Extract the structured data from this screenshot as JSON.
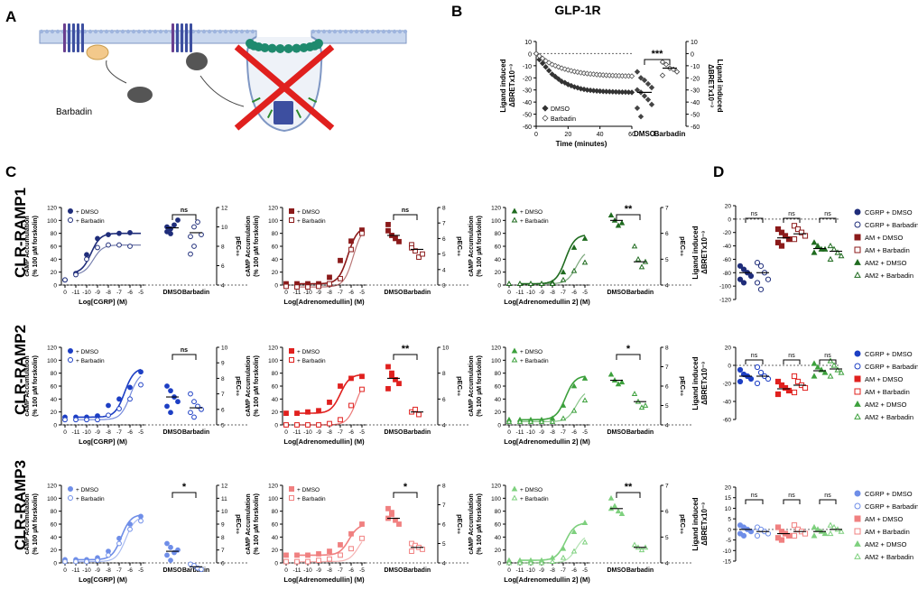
{
  "figure": {
    "panel_letters": [
      "A",
      "B",
      "C",
      "D"
    ],
    "row_labels": [
      "CLR-RAMP1",
      "CLR-RAMP2",
      "CLR-RAMP3"
    ],
    "schematic": {
      "label": "Barbadin"
    }
  },
  "chart_data": [
    {
      "id": "B",
      "type": "line",
      "title": "GLP-1R",
      "xlabel": "Time (minutes)",
      "ylabel": "Ligand induced\nΔBRETx10⁻³",
      "ylabel_right": "Ligand induced\nΔBRETx10⁻³",
      "xlim": [
        0,
        60
      ],
      "ylim": [
        -60,
        10
      ],
      "x_ticks": [
        "0",
        "20",
        "40",
        "60"
      ],
      "y_ticks": [
        "10",
        "0",
        "-10",
        "-20",
        "-30",
        "-40",
        "-50",
        "-60"
      ],
      "series": [
        {
          "name": "DMSO",
          "marker": "diamond-filled",
          "x": [
            0,
            2,
            4,
            6,
            8,
            10,
            12,
            14,
            16,
            18,
            20,
            22,
            24,
            26,
            28,
            30,
            32,
            34,
            36,
            38,
            40,
            42,
            44,
            46,
            48,
            50,
            52,
            54,
            56,
            58,
            60
          ],
          "values": [
            0,
            -5,
            -8,
            -11,
            -14,
            -17,
            -19,
            -21,
            -23,
            -24,
            -25.5,
            -26.5,
            -27.5,
            -28.2,
            -29,
            -29.5,
            -30,
            -30.3,
            -30.6,
            -30.8,
            -31,
            -31.2,
            -31.3,
            -31.4,
            -31.5,
            -31.6,
            -31.7,
            -31.8,
            -31.8,
            -31.9,
            -32
          ]
        },
        {
          "name": "Barbadin",
          "marker": "diamond-open",
          "x": [
            0,
            2,
            4,
            6,
            8,
            10,
            12,
            14,
            16,
            18,
            20,
            22,
            24,
            26,
            28,
            30,
            32,
            34,
            36,
            38,
            40,
            42,
            44,
            46,
            48,
            50,
            52,
            54,
            56,
            58,
            60
          ],
          "values": [
            0,
            -2,
            -4,
            -6,
            -7.5,
            -9,
            -10,
            -11,
            -12,
            -12.8,
            -13.5,
            -14.2,
            -14.8,
            -15.3,
            -15.8,
            -16.2,
            -16.5,
            -16.8,
            -17,
            -17.3,
            -17.5,
            -17.7,
            -17.9,
            -18,
            -18.1,
            -18.2,
            -18.3,
            -18.4,
            -18.5,
            -18.5,
            -18.6
          ]
        }
      ],
      "scatter": {
        "categories": [
          "DMSO",
          "Barbadin"
        ],
        "DMSO": [
          -15,
          -20,
          -22,
          -25,
          -28,
          -30,
          -32,
          -35,
          -38,
          -42,
          -45,
          -52
        ],
        "DMSO_mean": -32,
        "Barbadin": [
          -7,
          -9,
          -12,
          -13,
          -15,
          -18
        ],
        "Barbadin_mean": -12
      },
      "significance": "***"
    },
    {
      "id": "C",
      "type": "line",
      "ylabel": "cAMP Accumulation\n(% 100 µM forskolin)",
      "ylabel_right": "pEC₅₀",
      "x_ticks": [
        "0",
        "-11",
        "-10",
        "-9",
        "-8",
        "-7",
        "-6",
        "-5"
      ],
      "y_ticks": [
        "0",
        "20",
        "40",
        "60",
        "80",
        "100",
        "120"
      ],
      "legend": [
        "+ DMSO",
        "+ Barbadin"
      ],
      "scatter_categories": [
        "DMSO",
        "Barbadin"
      ],
      "panels": [
        {
          "row": 1,
          "col": 1,
          "xlabel": "Log[CGRP] (M)",
          "color": "#1f2d7a",
          "dmso_fit": [
            -9.6,
            80,
            8
          ],
          "barb_fit": [
            -9.4,
            62,
            8
          ],
          "dmso_pts": [
            8,
            18,
            47,
            72,
            78,
            80,
            81
          ],
          "barb_pts": [
            8,
            16,
            40,
            58,
            62,
            62,
            60
          ],
          "r_ticks": [
            "4",
            "6",
            "8",
            "10",
            "12"
          ],
          "r_range": [
            4,
            12
          ],
          "dmso_pec": [
            9.5,
            9.8,
            10.2,
            10.7,
            10.0,
            9.3
          ],
          "barb_pec": [
            9.0,
            10.0,
            10.5,
            9.2,
            7.2,
            8.0
          ],
          "dmso_mean": 9.9,
          "barb_mean": 9.4,
          "sig": "ns"
        },
        {
          "row": 1,
          "col": 2,
          "xlabel": "Log[Adrenomedullin] (M)",
          "color": "#8b1a1a",
          "dmso_fit": [
            -6.3,
            90,
            7
          ],
          "barb_fit": [
            -5.8,
            92,
            7
          ],
          "dmso_pts": [
            2,
            2,
            2,
            2,
            12,
            38,
            68,
            85
          ],
          "barb_pts": [
            -2,
            -3,
            -3,
            -2,
            2,
            10,
            55,
            80
          ],
          "r_ticks": [
            "3",
            "4",
            "5",
            "6",
            "7",
            "8"
          ],
          "r_range": [
            3,
            8
          ],
          "dmso_pec": [
            6.5,
            6.2,
            6.0,
            5.8,
            6.9
          ],
          "barb_pec": [
            5.6,
            5.2,
            4.8,
            5.0,
            5.4
          ],
          "dmso_mean": 6.2,
          "barb_mean": 5.3,
          "sig": "ns"
        },
        {
          "row": 1,
          "col": 3,
          "xlabel": "Log[Adrenomedullin 2] (M)",
          "color": "#1f6b1f",
          "dmso_fit": [
            -6.8,
            78,
            7
          ],
          "barb_fit": [
            -5.8,
            55,
            7
          ],
          "dmso_pts": [
            2,
            2,
            2,
            2,
            4,
            20,
            58,
            72
          ],
          "barb_pts": [
            2,
            2,
            2,
            2,
            2,
            8,
            22,
            35
          ],
          "r_ticks": [
            "4",
            "5",
            "6",
            "7"
          ],
          "r_range": [
            4,
            7
          ],
          "dmso_pec": [
            6.7,
            6.5,
            6.3,
            6.4
          ],
          "barb_pec": [
            5.5,
            5.0,
            4.7,
            4.9
          ],
          "dmso_mean": 6.5,
          "barb_mean": 4.9,
          "sig": "**"
        },
        {
          "row": 2,
          "col": 1,
          "xlabel": "Log[CGRP] (M)",
          "color": "#1d3fc4",
          "dmso_fit": [
            -6.5,
            88,
            7
          ],
          "barb_fit": [
            -6.0,
            82,
            7
          ],
          "dmso_pts": [
            12,
            12,
            12,
            14,
            30,
            40,
            58,
            82
          ],
          "barb_pts": [
            8,
            8,
            8,
            8,
            15,
            25,
            40,
            62
          ],
          "r_ticks": [
            "5",
            "6",
            "7",
            "8",
            "9",
            "10"
          ],
          "r_range": [
            5,
            10
          ],
          "dmso_pec": [
            7.5,
            7.2,
            6.8,
            6.5,
            6.2,
            5.8
          ],
          "barb_pec": [
            7.0,
            6.5,
            6.2,
            6.0,
            5.8,
            5.5
          ],
          "dmso_mean": 6.8,
          "barb_mean": 6.1,
          "sig": "ns"
        },
        {
          "row": 2,
          "col": 2,
          "xlabel": "Log[Adrenomedullin] (M)",
          "color": "#e0201e",
          "dmso_fit": [
            -7.0,
            78,
            7
          ],
          "barb_fit": [
            -5.5,
            75,
            7
          ],
          "dmso_pts": [
            18,
            18,
            20,
            22,
            35,
            60,
            72,
            75
          ],
          "barb_pts": [
            0,
            0,
            0,
            0,
            2,
            8,
            30,
            55
          ],
          "r_ticks": [
            "4",
            "6",
            "8",
            "10"
          ],
          "r_range": [
            4,
            10
          ],
          "dmso_pec": [
            8.5,
            8.0,
            7.5,
            7.2,
            6.8,
            7.8
          ],
          "barb_pec": [
            5.0,
            5.2,
            4.8
          ],
          "dmso_mean": 7.6,
          "barb_mean": 5.0,
          "sig": "**"
        },
        {
          "row": 2,
          "col": 3,
          "xlabel": "Log[Adrenomedullin 2] (M)",
          "color": "#3ca03c",
          "dmso_fit": [
            -6.8,
            76,
            7
          ],
          "barb_fit": [
            -5.8,
            55,
            7
          ],
          "dmso_pts": [
            8,
            8,
            8,
            8,
            10,
            30,
            60,
            72
          ],
          "barb_pts": [
            5,
            5,
            5,
            5,
            5,
            10,
            22,
            38
          ],
          "r_ticks": [
            "4",
            "5",
            "6",
            "7",
            "8"
          ],
          "r_range": [
            4,
            8
          ],
          "dmso_pec": [
            6.6,
            6.3,
            6.1,
            6.2
          ],
          "barb_pec": [
            5.6,
            5.2,
            4.9,
            5.0
          ],
          "dmso_mean": 6.3,
          "barb_mean": 5.2,
          "sig": "*"
        },
        {
          "row": 3,
          "col": 1,
          "xlabel": "Log[CGRP] (M)",
          "color": "#6f8ee8",
          "dmso_fit": [
            -6.8,
            75,
            7
          ],
          "barb_fit": [
            -6.4,
            72,
            7
          ],
          "dmso_pts": [
            5,
            5,
            5,
            8,
            18,
            38,
            60,
            72
          ],
          "barb_pts": [
            2,
            2,
            2,
            4,
            12,
            30,
            52,
            65
          ],
          "r_ticks": [
            "6",
            "7",
            "8",
            "9",
            "10",
            "11",
            "12"
          ],
          "r_range": [
            6,
            12
          ],
          "dmso_pec": [
            7.5,
            7.2,
            6.8,
            7.0,
            6.6,
            6.2
          ],
          "barb_pec": [
            5.9,
            5.8,
            5.6,
            5.5
          ],
          "dmso_mean": 6.9,
          "barb_mean": 5.7,
          "sig": "*"
        },
        {
          "row": 3,
          "col": 2,
          "xlabel": "Log[Adrenomedullin] (M)",
          "color": "#f08080",
          "dmso_fit": [
            -6.2,
            60,
            7
          ],
          "barb_fit": [
            -5.3,
            48,
            7
          ],
          "dmso_pts": [
            12,
            12,
            12,
            14,
            18,
            28,
            45,
            60
          ],
          "barb_pts": [
            2,
            2,
            2,
            4,
            6,
            12,
            22,
            38
          ],
          "r_ticks": [
            "4",
            "5",
            "6",
            "7",
            "8"
          ],
          "r_range": [
            4,
            8
          ],
          "dmso_pec": [
            6.8,
            6.5,
            6.2,
            6.0,
            6.3,
            6.6
          ],
          "barb_pec": [
            5.0,
            4.9,
            4.8,
            4.7,
            4.6
          ],
          "dmso_mean": 6.3,
          "barb_mean": 4.8,
          "sig": "*"
        },
        {
          "row": 3,
          "col": 3,
          "xlabel": "Log[Adrenomedullin 2] (M)",
          "color": "#7ed07e",
          "dmso_fit": [
            -6.8,
            62,
            7
          ],
          "barb_fit": [
            -5.8,
            45,
            7
          ],
          "dmso_pts": [
            4,
            4,
            4,
            4,
            8,
            22,
            48,
            62
          ],
          "barb_pts": [
            0,
            0,
            0,
            0,
            2,
            8,
            18,
            32
          ],
          "r_ticks": [
            "4",
            "5",
            "6",
            "7"
          ],
          "r_range": [
            4,
            7
          ],
          "dmso_pec": [
            6.5,
            6.2,
            6.0,
            5.9,
            6.1
          ],
          "barb_pec": [
            4.7,
            4.6,
            4.5,
            4.6
          ],
          "dmso_mean": 6.1,
          "barb_mean": 4.6,
          "sig": "**"
        }
      ]
    },
    {
      "id": "D",
      "type": "scatter",
      "ylabel": "Ligand induced\nΔBRETx10⁻³",
      "significance": "ns",
      "panels": [
        {
          "row": 1,
          "ylim": [
            -120,
            20
          ],
          "y_ticks": [
            "20",
            "0",
            "-20",
            "-40",
            "-60",
            "-80",
            "-100",
            "-120"
          ],
          "legend": [
            "CGRP + DMSO",
            "CGRP + Barbadin",
            "AM + DMSO",
            "AM + Barbadin",
            "AM2 + DMSO",
            "AM2 + Barbadin"
          ],
          "colors": [
            "#1f2d7a",
            "#1f2d7a",
            "#8b1a1a",
            "#8b1a1a",
            "#1f6b1f",
            "#1f6b1f"
          ],
          "groups": [
            [
              -70,
              -75,
              -80,
              -85,
              -90,
              -95
            ],
            [
              -65,
              -70,
              -80,
              -90,
              -95,
              -105
            ],
            [
              -15,
              -20,
              -25,
              -30,
              -35,
              -40
            ],
            [
              -10,
              -15,
              -20,
              -25,
              -30
            ],
            [
              -35,
              -40,
              -45,
              -45,
              -50
            ],
            [
              -40,
              -45,
              -50,
              -55,
              -60
            ]
          ],
          "means": [
            -80,
            -80,
            -28,
            -22,
            -44,
            -48
          ]
        },
        {
          "row": 2,
          "ylim": [
            -60,
            20
          ],
          "y_ticks": [
            "20",
            "0",
            "-20",
            "-40",
            "-60"
          ],
          "legend": [
            "CGRP + DMSO",
            "CGRP + Barbadin",
            "AM + DMSO",
            "AM + Barbadin",
            "AM2 + DMSO",
            "AM2 + Barbadin"
          ],
          "colors": [
            "#1d3fc4",
            "#1d3fc4",
            "#e0201e",
            "#e0201e",
            "#3ca03c",
            "#3ca03c"
          ],
          "groups": [
            [
              -5,
              -10,
              -12,
              -15,
              -18
            ],
            [
              -2,
              -8,
              -12,
              -15,
              -20
            ],
            [
              -18,
              -22,
              -25,
              -28,
              -32
            ],
            [
              -12,
              -18,
              -22,
              -25,
              -30
            ],
            [
              2,
              -2,
              -5,
              -8,
              -12
            ],
            [
              5,
              0,
              -5,
              -8,
              -12
            ]
          ],
          "means": [
            -12,
            -12,
            -26,
            -22,
            -6,
            -4
          ]
        },
        {
          "row": 3,
          "ylim": [
            -15,
            20
          ],
          "y_ticks": [
            "20",
            "15",
            "10",
            "5",
            "0",
            "-5",
            "-10",
            "-15"
          ],
          "legend": [
            "CGRP + DMSO",
            "CGRP + Barbadin",
            "AM + DMSO",
            "AM + Barbadin",
            "AM2 + DMSO",
            "AM2 + Barbadin"
          ],
          "colors": [
            "#6f8ee8",
            "#6f8ee8",
            "#f08080",
            "#f08080",
            "#7ed07e",
            "#7ed07e"
          ],
          "groups": [
            [
              2,
              1,
              0,
              -1,
              -2,
              -3
            ],
            [
              1,
              0,
              -1,
              -2,
              -3
            ],
            [
              1,
              -1,
              -2,
              -3,
              -4,
              -5
            ],
            [
              2,
              0,
              -1,
              -2,
              -3
            ],
            [
              1,
              0,
              -1,
              -2,
              -3
            ],
            [
              2,
              1,
              0,
              -1,
              -2
            ]
          ],
          "means": [
            0,
            -1,
            -2,
            -1,
            -1,
            0
          ]
        }
      ]
    }
  ]
}
